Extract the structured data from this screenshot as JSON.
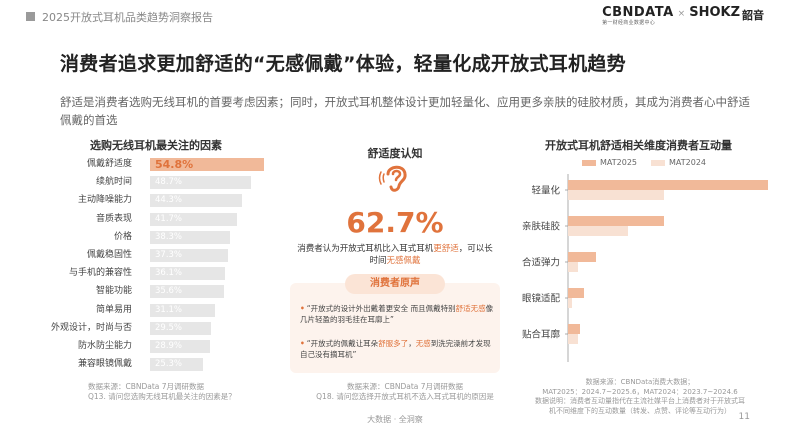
{
  "header": {
    "report_title": "2025开放式耳机品类趋势洞察报告",
    "cbn_logo": "CBNDATA",
    "cbn_sub": "第一财经商业数据中心",
    "logo_separator": "×",
    "shokz_logo": "SHOKZ",
    "shokz_cn": "韶音"
  },
  "headline": "消费者追求更加舒适的“无感佩戴”体验，轻量化成开放式耳机趋势",
  "subtitle": "舒适是消费者选购无线耳机的首要考虑因素；同时，开放式耳机整体设计更加轻量化、应用更多亲肤的硅胶材质，其成为消费者心中舒适佩戴的首选",
  "chart_data": [
    {
      "type": "bar",
      "title": "选购无线耳机最关注的因素",
      "categories": [
        "佩戴舒适度",
        "续航时间",
        "主动降噪能力",
        "音质表现",
        "价格",
        "佩戴稳固性",
        "与手机的兼容性",
        "智能功能",
        "简单易用",
        "外观设计，时尚与否",
        "防水防尘能力",
        "兼容眼镜佩戴"
      ],
      "values": [
        54.8,
        48.7,
        44.3,
        41.7,
        38.3,
        37.3,
        36.1,
        35.6,
        31.1,
        29.5,
        28.9,
        25.3
      ],
      "value_labels": [
        "54.8%",
        "48.7%",
        "44.3%",
        "41.7%",
        "38.3%",
        "37.3%",
        "36.1%",
        "35.6%",
        "31.1%",
        "29.5%",
        "28.9%",
        "25.3%"
      ],
      "highlight_index": 0,
      "colors": {
        "highlight": "#f1b999",
        "normal": "#e6e6e6",
        "highlight_text": "#e0733c"
      },
      "source": "数据来源：CBNData 7月调研数据",
      "question": "Q13. 请问您选购无线耳机最关注的因素是？"
    },
    {
      "type": "bar",
      "title": "开放式耳机舒适相关维度消费者互动量",
      "categories": [
        "轻量化",
        "亲肤硅胶",
        "合适弹力",
        "眼镜适配",
        "贴合耳廓"
      ],
      "series": [
        {
          "name": "MAT2025",
          "values": [
            100,
            48,
            14,
            8,
            6
          ],
          "color": "#f1b999"
        },
        {
          "name": "MAT2024",
          "values": [
            48,
            30,
            5,
            2,
            5
          ],
          "color": "#f8e1d3"
        }
      ],
      "orientation": "horizontal",
      "source_lines": [
        "数据来源：CBNData消费大数据；",
        "MAT2025：2024.7~2025.6，MAT2024：2023.7~2024.6",
        "数据说明：消费者互动量指代在主流社媒平台上消费者对于开放式耳",
        "机不同维度下的互动数量（转发、点赞、评论等互动行为）"
      ]
    }
  ],
  "middle": {
    "title": "舒适度认知",
    "percent": "62.7%",
    "desc_part1": "消费者认为开放式耳机比入耳式耳机",
    "desc_hl1": "更舒适",
    "desc_part2": "，可以长时间",
    "desc_hl2": "无感佩戴",
    "voice_title": "消费者原声",
    "quote1_a": "“开放式的设计外出戴着更安全 而且佩戴特别",
    "quote1_hl": "舒适无感",
    "quote1_b": "像几片轻盈的羽毛挂在耳廓上”",
    "quote2_a": "“开放式的佩戴让耳朵",
    "quote2_hl1": "舒服多了",
    "quote2_mid": "，",
    "quote2_hl2": "无感",
    "quote2_b": "到洗完澡前才发现自己没有摘耳机”",
    "source": "数据来源：CBNData 7月调研数据",
    "question": "Q18. 请问您选择开放式耳机不选入耳式耳机的原因是"
  },
  "footer": {
    "text": "大数据 · 全洞察",
    "page": "11"
  },
  "colors": {
    "accent": "#e0733c",
    "accent_light": "#f1b999",
    "accent_pale": "#f8e1d3",
    "box_bg": "#fdf3ed"
  },
  "icons": {
    "ear": "ear-icon"
  }
}
